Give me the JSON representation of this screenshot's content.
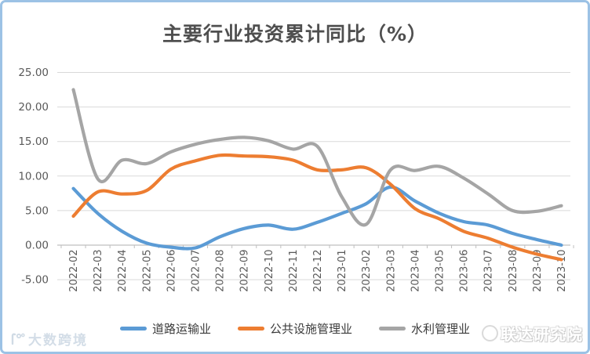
{
  "title": "主要行业投资累计同比（%）",
  "frame": {
    "border_color": "#9cc2e5",
    "background": "#ffffff"
  },
  "axis": {
    "y_tick_labels": [
      "25.00",
      "20.00",
      "15.00",
      "10.00",
      "5.00",
      "0.00",
      "-5.00"
    ],
    "y_tick_values": [
      25,
      20,
      15,
      10,
      5,
      0,
      -5
    ],
    "label_color": "#595959",
    "grid_color": "#d9d9d9",
    "axis_line_color": "#bfbfbf"
  },
  "chart_data": {
    "type": "line",
    "smooth": true,
    "grid": true,
    "legend_position": "bottom",
    "ylim": [
      -5,
      25
    ],
    "ytick_step": 5,
    "title": "主要行业投资累计同比（%）",
    "categories": [
      "2022-02",
      "2022-03",
      "2022-04",
      "2022-05",
      "2022-06",
      "2022-07",
      "2022-08",
      "2022-09",
      "2022-10",
      "2022-11",
      "2022-12",
      "2023-01",
      "2023-02",
      "2023-03",
      "2023-04",
      "2023-05",
      "2023-06",
      "2023-07",
      "2023-08",
      "2023-09",
      "2023-10"
    ],
    "series": [
      {
        "name": "道路运输业",
        "color": "#5b9bd5",
        "values": [
          8.2,
          4.6,
          2.0,
          0.3,
          -0.3,
          -0.4,
          1.2,
          2.4,
          2.9,
          2.3,
          3.3,
          4.6,
          6.0,
          8.4,
          6.4,
          4.6,
          3.4,
          2.9,
          1.7,
          0.8,
          0.0
        ]
      },
      {
        "name": "公共设施管理业",
        "color": "#ed7d31",
        "values": [
          4.2,
          7.7,
          7.4,
          7.9,
          11.0,
          12.2,
          13.0,
          12.9,
          12.8,
          12.3,
          10.9,
          10.9,
          11.2,
          8.8,
          5.3,
          3.8,
          2.0,
          1.0,
          -0.3,
          -1.3,
          -2.1
        ]
      },
      {
        "name": "水利管理业",
        "color": "#a5a5a5",
        "values": [
          22.5,
          9.6,
          12.3,
          11.8,
          13.5,
          14.6,
          15.3,
          15.6,
          15.1,
          13.9,
          14.3,
          7.0,
          3.0,
          10.9,
          10.8,
          11.4,
          9.7,
          7.4,
          5.0,
          4.9,
          5.7
        ]
      }
    ]
  },
  "watermarks": {
    "left_text": "大数跨境",
    "right_text": "联达研究院"
  }
}
